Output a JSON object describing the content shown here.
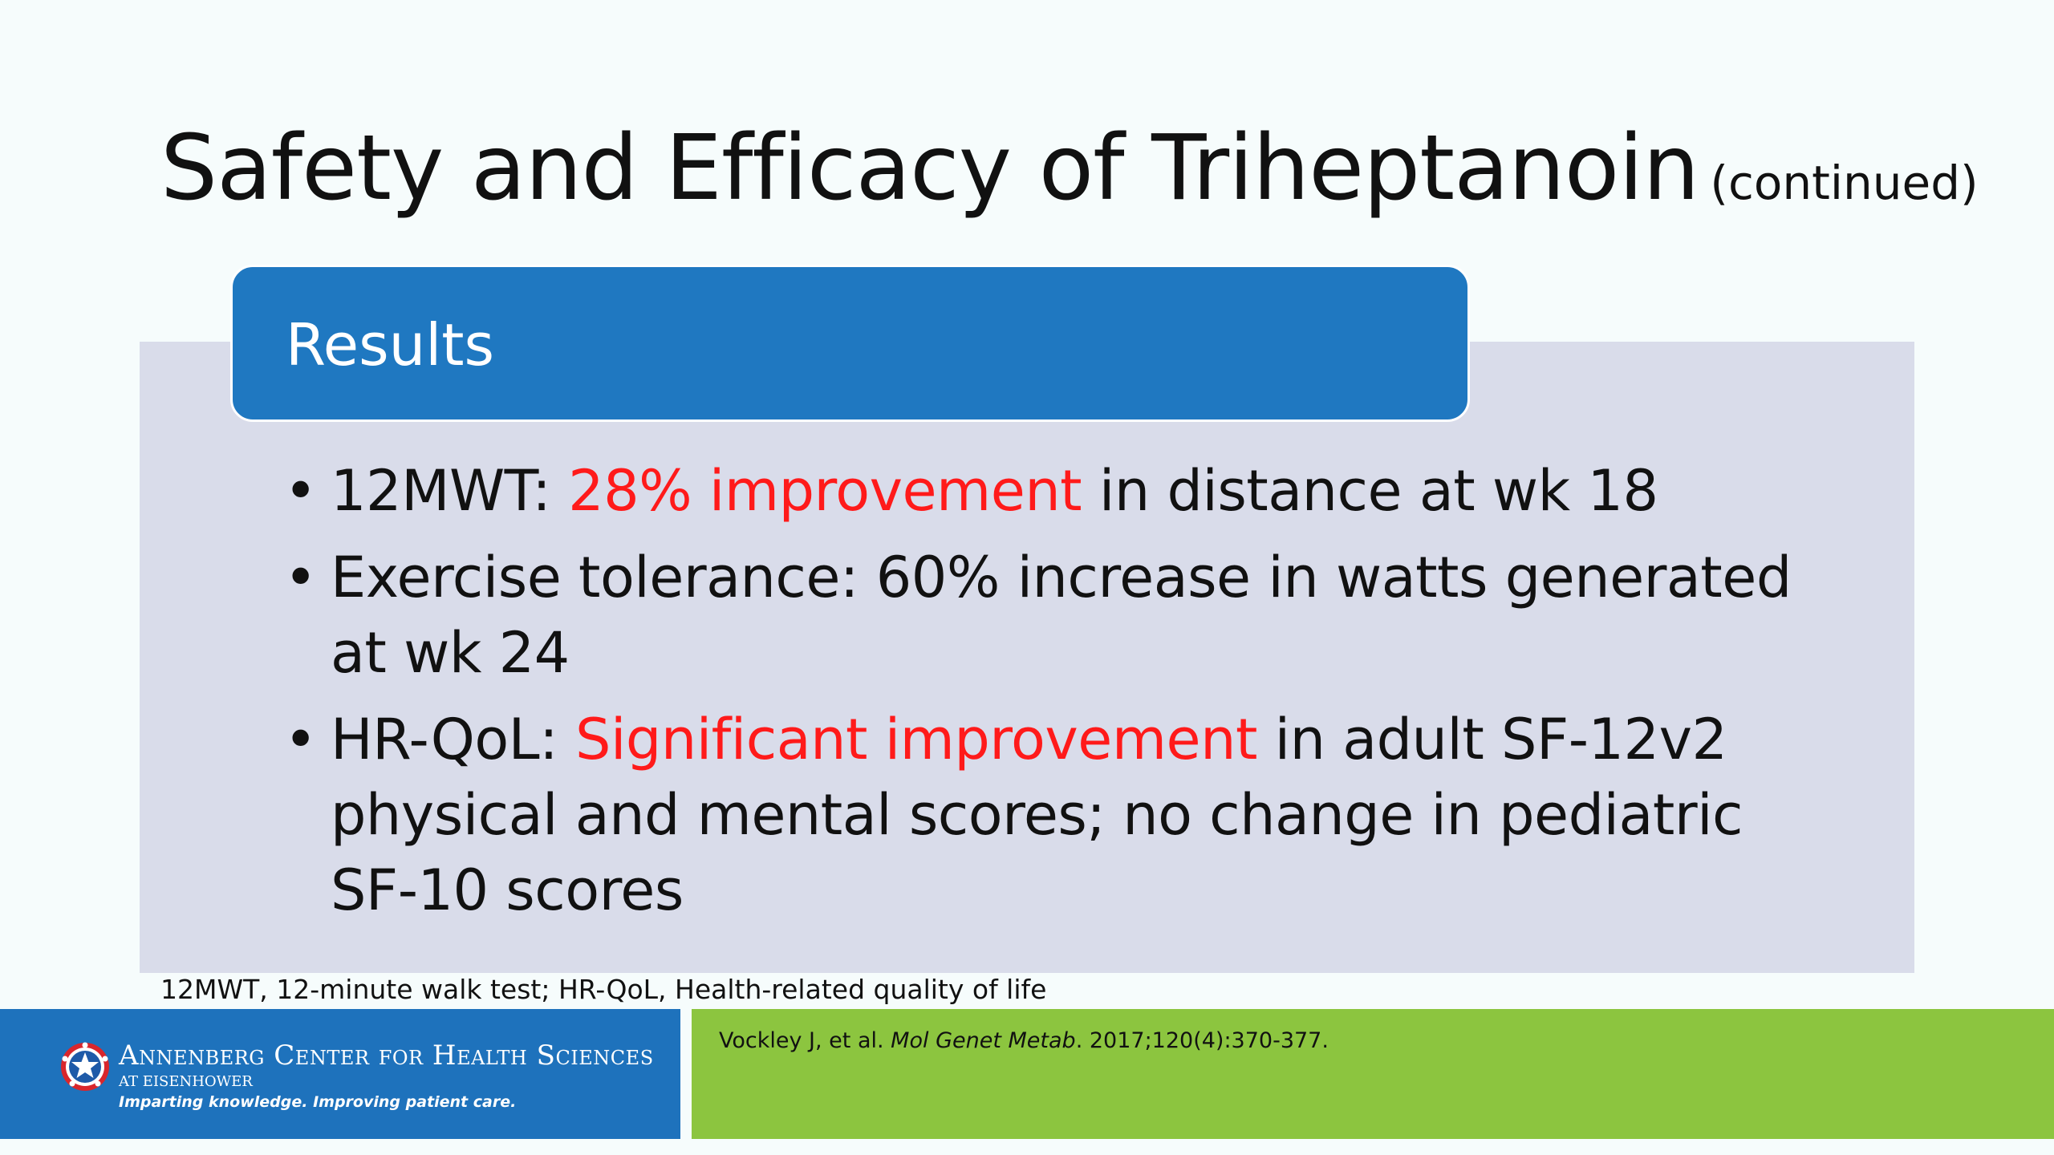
{
  "slide": {
    "title": "Safety and Efficacy of Triheptanoin",
    "title_suffix": "(continued)",
    "section_header": "Results",
    "bullets": [
      {
        "prefix": "12MWT: ",
        "highlight": "28% improvement",
        "suffix": " in distance at wk 18"
      },
      {
        "prefix": "Exercise tolerance: 60% increase in watts generated at wk 24",
        "highlight": "",
        "suffix": ""
      },
      {
        "prefix": "HR-QoL: ",
        "highlight": "Significant improvement",
        "suffix": " in adult SF-12v2 physical and mental scores; no change in pediatric SF-10 scores"
      }
    ],
    "abbreviations": "12MWT, 12-minute walk test; HR-QoL, Health-related quality of life"
  },
  "footer": {
    "org_name": "Annenberg Center for Health Sciences",
    "org_sub": "at Eisenhower",
    "tagline": "Imparting knowledge. Improving patient care.",
    "citation_authors": "Vockley J, et al. ",
    "citation_journal": "Mol Genet Metab",
    "citation_details": ". 2017;120(4):370-377."
  },
  "colors": {
    "header_blue": "#1f78c1",
    "panel": "#d9dcea",
    "highlight_red": "#ff1a1a",
    "footer_blue": "#1e72bc",
    "footer_green": "#8cc53f"
  }
}
